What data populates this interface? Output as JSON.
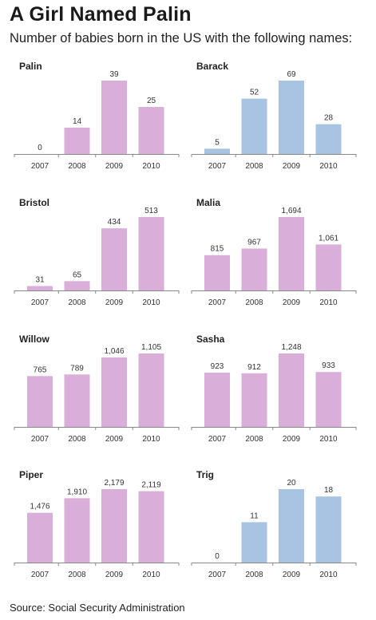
{
  "title": "A Girl Named Palin",
  "subtitle": "Number of babies born in the US with the following names:",
  "source": "Source: Social Security Administration",
  "colors": {
    "pink": "#d9aed9",
    "blue": "#a9c3e2",
    "axis": "#888888"
  },
  "chart_data": [
    {
      "type": "bar",
      "title": "Palin",
      "categories": [
        "2007",
        "2008",
        "2009",
        "2010"
      ],
      "values": [
        0,
        14,
        39,
        25
      ],
      "labels": [
        "0",
        "14",
        "39",
        "25"
      ],
      "color": "pink"
    },
    {
      "type": "bar",
      "title": "Barack",
      "categories": [
        "2007",
        "2008",
        "2009",
        "2010"
      ],
      "values": [
        5,
        52,
        69,
        28
      ],
      "labels": [
        "5",
        "52",
        "69",
        "28"
      ],
      "color": "blue"
    },
    {
      "type": "bar",
      "title": "Bristol",
      "categories": [
        "2007",
        "2008",
        "2009",
        "2010"
      ],
      "values": [
        31,
        65,
        434,
        513
      ],
      "labels": [
        "31",
        "65",
        "434",
        "513"
      ],
      "color": "pink"
    },
    {
      "type": "bar",
      "title": "Malia",
      "categories": [
        "2007",
        "2008",
        "2009",
        "2010"
      ],
      "values": [
        815,
        967,
        1694,
        1061
      ],
      "labels": [
        "815",
        "967",
        "1,694",
        "1,061"
      ],
      "color": "pink"
    },
    {
      "type": "bar",
      "title": "Willow",
      "categories": [
        "2007",
        "2008",
        "2009",
        "2010"
      ],
      "values": [
        765,
        789,
        1046,
        1105
      ],
      "labels": [
        "765",
        "789",
        "1,046",
        "1,105"
      ],
      "color": "pink"
    },
    {
      "type": "bar",
      "title": "Sasha",
      "categories": [
        "2007",
        "2008",
        "2009",
        "2010"
      ],
      "values": [
        923,
        912,
        1248,
        933
      ],
      "labels": [
        "923",
        "912",
        "1,248",
        "933"
      ],
      "color": "pink"
    },
    {
      "type": "bar",
      "title": "Piper",
      "categories": [
        "2007",
        "2008",
        "2009",
        "2010"
      ],
      "values": [
        1476,
        1910,
        2179,
        2119
      ],
      "labels": [
        "1,476",
        "1,910",
        "2,179",
        "2,119"
      ],
      "color": "pink"
    },
    {
      "type": "bar",
      "title": "Trig",
      "categories": [
        "2007",
        "2008",
        "2009",
        "2010"
      ],
      "values": [
        0,
        11,
        20,
        18
      ],
      "labels": [
        "0",
        "11",
        "20",
        "18"
      ],
      "color": "blue"
    }
  ]
}
